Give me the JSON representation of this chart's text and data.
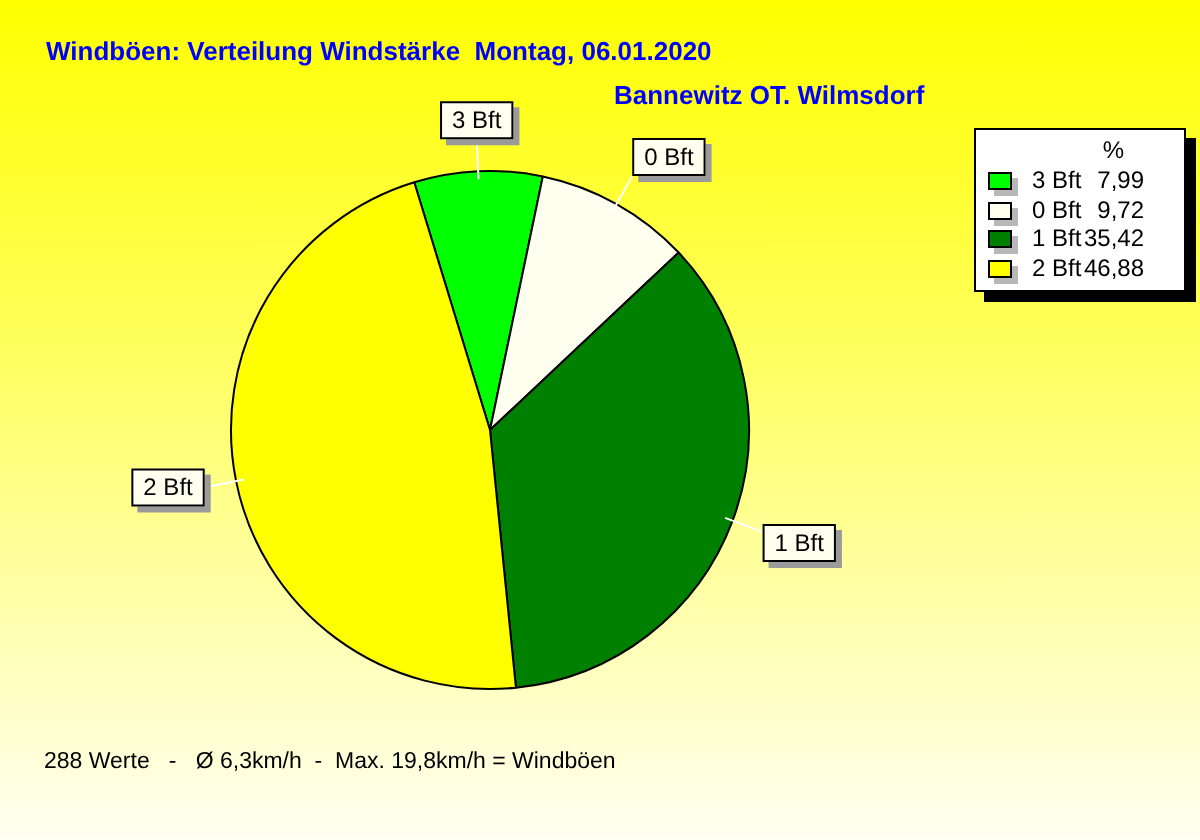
{
  "chart_data": {
    "type": "pie",
    "title": "Windböen: Verteilung Windstärke  Montag, 06.01.2020",
    "subtitle": "Bannewitz OT. Wilmsdorf",
    "categories": [
      "3 Bft",
      "0 Bft",
      "1 Bft",
      "2 Bft"
    ],
    "values": [
      7.99,
      9.72,
      35.42,
      46.88
    ],
    "colors": [
      "#00ff00",
      "#fffff0",
      "#008000",
      "#ffff00"
    ],
    "value_labels": [
      "7,99",
      "9,72",
      "35,42",
      "46,88"
    ],
    "legend": "top right",
    "legend_title": "%",
    "annotations": [
      "288 Werte   -   Ø 6,3km/h  -  Max. 19,8km/h = Windböen"
    ]
  }
}
